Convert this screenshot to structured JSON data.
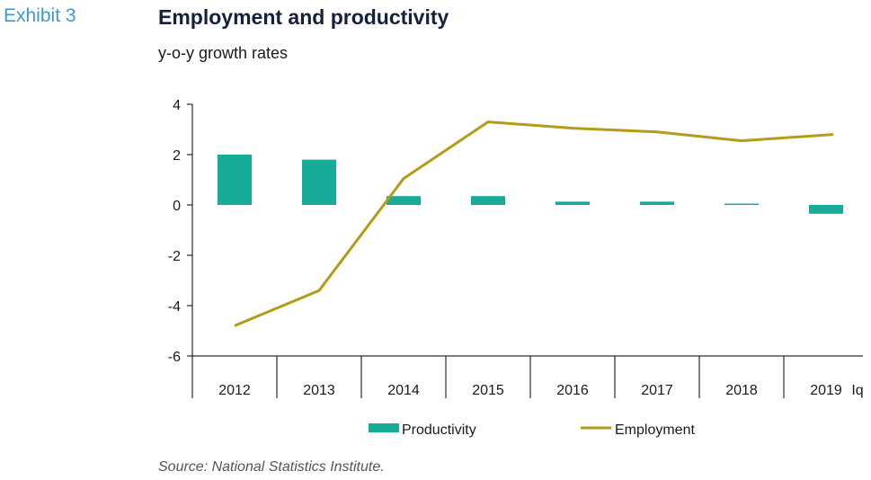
{
  "header": {
    "exhibit": "Exhibit 3",
    "title": "Employment and productivity",
    "subtitle": "y-o-y growth rates"
  },
  "footer": {
    "source": "Source: National Statistics Institute."
  },
  "colors": {
    "productivity": "#17ab9a",
    "employment": "#b39c17",
    "axis": "#000000"
  },
  "chart_data": {
    "type": "bar",
    "categories": [
      "2012",
      "2013",
      "2014",
      "2015",
      "2016",
      "2017",
      "2018",
      "2019"
    ],
    "last_category_suffix": "Iq",
    "ylim": [
      -6,
      4
    ],
    "yticks": [
      4,
      2,
      0,
      -2,
      -4,
      -6
    ],
    "series": [
      {
        "name": "Productivity",
        "type": "bar",
        "values": [
          2.0,
          1.8,
          0.35,
          0.35,
          0.13,
          0.13,
          0.05,
          -0.35
        ]
      },
      {
        "name": "Employment",
        "type": "line",
        "values": [
          -4.8,
          -3.4,
          1.05,
          3.3,
          3.05,
          2.9,
          2.55,
          2.8
        ]
      }
    ],
    "legend": "bottom-center",
    "grid": false
  }
}
